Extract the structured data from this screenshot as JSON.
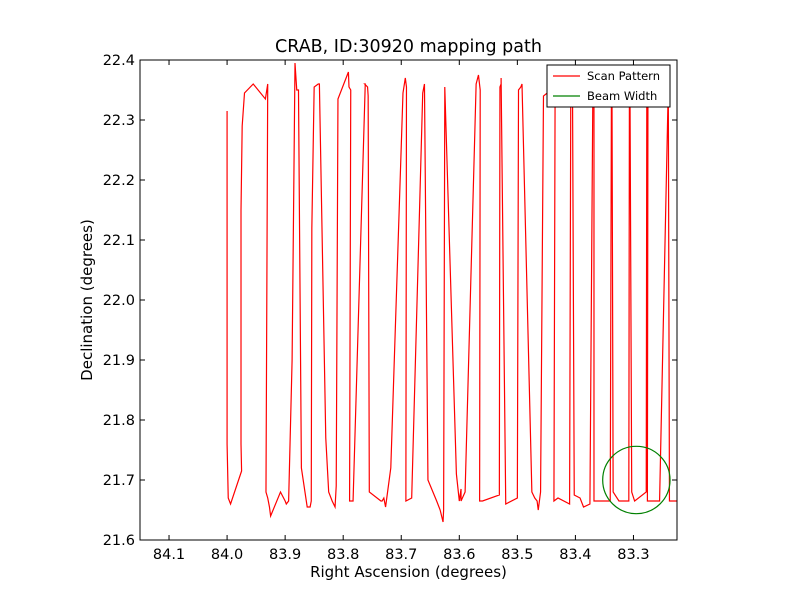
{
  "chart_data": {
    "type": "line",
    "title": "CRAB, ID:30920 mapping path",
    "xlabel": "Right Ascension (degrees)",
    "ylabel": "Declination (degrees)",
    "xlim": [
      84.15,
      83.225
    ],
    "ylim": [
      21.6,
      22.4
    ],
    "x_inverted": true,
    "grid": false,
    "legend_placement": "top-right",
    "xticks": [
      84.1,
      84.0,
      83.9,
      83.8,
      83.7,
      83.6,
      83.5,
      83.4,
      83.3
    ],
    "yticks": [
      21.6,
      21.7,
      21.8,
      21.9,
      22.0,
      22.1,
      22.2,
      22.3,
      22.4
    ],
    "xtick_labels": [
      "84.1",
      "84.0",
      "83.9",
      "83.8",
      "83.7",
      "83.6",
      "83.5",
      "83.4",
      "83.3"
    ],
    "ytick_labels": [
      "21.6",
      "21.7",
      "21.8",
      "21.9",
      "22.0",
      "22.1",
      "22.2",
      "22.3",
      "22.4"
    ],
    "series": [
      {
        "name": "Scan Pattern",
        "color": "#ff0000",
        "x": [
          84.0,
          84.0,
          84.0,
          83.998,
          83.994,
          83.975,
          83.976,
          83.976,
          83.974,
          83.97,
          83.955,
          83.934,
          83.93,
          83.933,
          83.93,
          83.93,
          83.927,
          83.925,
          83.908,
          83.9,
          83.898,
          83.894,
          83.888,
          83.883,
          83.88,
          83.877,
          83.872,
          83.862,
          83.857,
          83.855,
          83.854,
          83.85,
          83.843,
          83.841,
          83.83,
          83.825,
          83.819,
          83.814,
          83.812,
          83.809,
          83.791,
          83.79,
          83.787,
          83.789,
          83.783,
          83.762,
          83.763,
          83.758,
          83.757,
          83.755,
          83.735,
          83.733,
          83.73,
          83.727,
          83.718,
          83.697,
          83.693,
          83.691,
          83.692,
          83.692,
          83.682,
          83.663,
          83.66,
          83.654,
          83.639,
          83.633,
          83.628,
          83.627,
          83.625,
          83.625,
          83.605,
          83.6,
          83.597,
          83.597,
          83.59,
          83.571,
          83.567,
          83.564,
          83.565,
          83.56,
          83.531,
          83.53,
          83.528,
          83.528,
          83.52,
          83.5,
          83.5,
          83.498,
          83.494,
          83.492,
          83.475,
          83.47,
          83.466,
          83.464,
          83.46,
          83.455,
          83.436,
          83.435,
          83.437,
          83.43,
          83.41,
          83.408,
          83.407,
          83.405,
          83.402,
          83.392,
          83.386,
          83.375,
          83.37,
          83.37,
          83.368,
          83.368,
          83.34,
          83.338,
          83.337,
          83.335,
          83.325,
          83.308,
          83.307,
          83.306,
          83.303,
          83.298,
          83.278,
          83.277,
          83.275,
          83.276,
          83.255,
          83.24,
          83.24,
          83.238,
          83.225
        ],
        "y": [
          22.315,
          21.96,
          21.76,
          21.67,
          21.66,
          21.715,
          21.76,
          22.15,
          22.29,
          22.345,
          22.36,
          22.335,
          22.36,
          21.68,
          21.67,
          21.67,
          21.655,
          21.64,
          21.68,
          21.665,
          21.66,
          21.665,
          21.9,
          22.395,
          22.35,
          22.35,
          21.72,
          21.655,
          21.655,
          21.665,
          22.12,
          22.355,
          22.36,
          22.36,
          21.77,
          21.68,
          21.665,
          21.655,
          21.69,
          22.335,
          22.38,
          22.355,
          22.35,
          21.665,
          21.665,
          22.36,
          22.36,
          22.355,
          22.34,
          21.68,
          21.665,
          21.665,
          21.67,
          21.655,
          21.72,
          22.345,
          22.37,
          22.355,
          21.68,
          21.665,
          21.67,
          22.345,
          22.36,
          21.7,
          21.665,
          21.65,
          21.63,
          21.65,
          22.34,
          22.355,
          21.71,
          21.665,
          21.685,
          21.665,
          21.68,
          22.36,
          22.375,
          22.35,
          21.665,
          21.665,
          21.675,
          22.355,
          22.36,
          22.37,
          21.66,
          21.67,
          21.675,
          22.35,
          22.355,
          22.36,
          21.68,
          21.67,
          21.665,
          21.65,
          21.68,
          22.34,
          22.355,
          22.34,
          21.665,
          21.67,
          21.66,
          22.34,
          22.355,
          22.355,
          21.675,
          21.67,
          21.655,
          21.66,
          22.34,
          22.355,
          22.36,
          21.665,
          21.665,
          22.335,
          22.35,
          21.68,
          21.665,
          21.665,
          22.34,
          22.355,
          21.68,
          21.665,
          21.68,
          22.355,
          22.365,
          21.665,
          21.665,
          22.355,
          22.36,
          21.665,
          21.665
        ]
      },
      {
        "name": "Beam Width",
        "color": "#008000",
        "circle": {
          "center_x": 83.295,
          "center_y": 21.7,
          "radius_deg": 0.058
        }
      }
    ]
  }
}
